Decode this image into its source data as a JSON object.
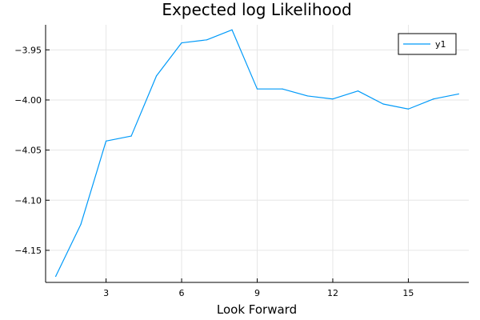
{
  "chart_data": {
    "type": "line",
    "title": "Expected log Likelihood",
    "xlabel": "Look Forward",
    "ylabel": "",
    "xlim": [
      0.6,
      17.4
    ],
    "ylim": [
      -4.182,
      -3.925
    ],
    "xticks": [
      3,
      6,
      9,
      12,
      15
    ],
    "xtick_labels": [
      "3",
      "6",
      "9",
      "12",
      "15"
    ],
    "yticks": [
      -3.95,
      -4.0,
      -4.05,
      -4.1,
      -4.15
    ],
    "ytick_labels": [
      "−3.95",
      "−4.00",
      "−4.05",
      "−4.10",
      "−4.15"
    ],
    "grid": true,
    "legend_position": "top-right",
    "series": [
      {
        "name": "y1",
        "color": "#009af9",
        "x": [
          1,
          2,
          3,
          4,
          5,
          6,
          7,
          8,
          9,
          10,
          11,
          12,
          13,
          14,
          15,
          16,
          17
        ],
        "values": [
          -4.176,
          -4.124,
          -4.041,
          -4.036,
          -3.976,
          -3.943,
          -3.94,
          -3.93,
          -3.989,
          -3.989,
          -3.996,
          -3.999,
          -3.991,
          -4.004,
          -4.009,
          -3.999,
          -3.994
        ]
      }
    ]
  }
}
